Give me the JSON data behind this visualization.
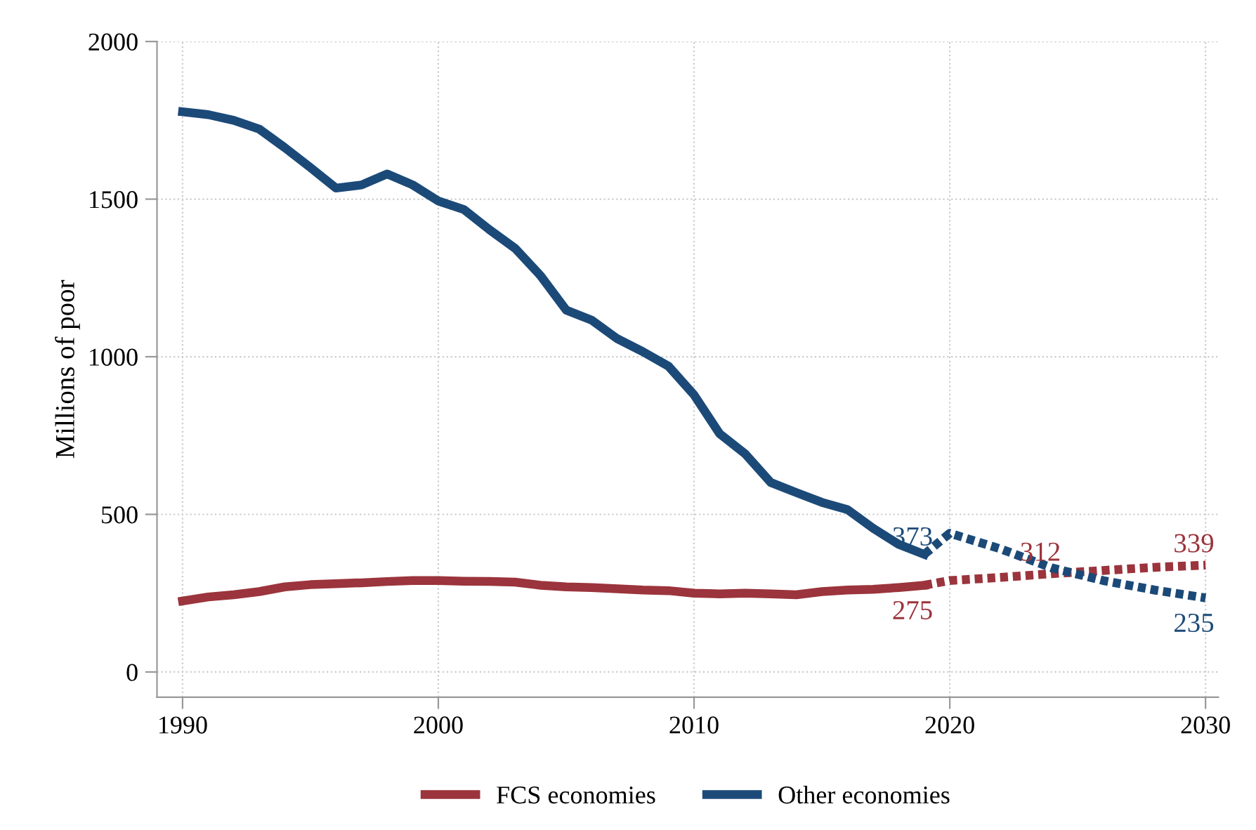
{
  "chart_data": {
    "type": "line",
    "ylabel": "Millions of poor",
    "xlim": [
      1989,
      2030.5
    ],
    "ylim": [
      -80,
      2000
    ],
    "xticks": [
      1990,
      2000,
      2010,
      2020,
      2030
    ],
    "yticks": [
      0,
      500,
      1000,
      1500,
      2000
    ],
    "grid": true,
    "legend": "bottom",
    "line_style": "solid",
    "marker": "none",
    "series": [
      {
        "name": "FCS economies",
        "color": "#9b343c",
        "x": [
          1990,
          1991,
          1992,
          1993,
          1994,
          1995,
          1996,
          1997,
          1998,
          1999,
          2000,
          2001,
          2002,
          2003,
          2004,
          2005,
          2006,
          2007,
          2008,
          2009,
          2010,
          2011,
          2012,
          2013,
          2014,
          2015,
          2016,
          2017,
          2018,
          2019
        ],
        "values": [
          225,
          238,
          245,
          255,
          270,
          277,
          280,
          283,
          287,
          290,
          290,
          288,
          287,
          285,
          275,
          270,
          268,
          264,
          260,
          258,
          250,
          248,
          250,
          248,
          245,
          255,
          260,
          262,
          268,
          275
        ]
      },
      {
        "name": "Other economies",
        "color": "#1c4a78",
        "x": [
          1990,
          1991,
          1992,
          1993,
          1994,
          1995,
          1996,
          1997,
          1998,
          1999,
          2000,
          2001,
          2002,
          2003,
          2004,
          2005,
          2006,
          2007,
          2008,
          2009,
          2010,
          2011,
          2012,
          2013,
          2014,
          2015,
          2016,
          2017,
          2018,
          2019
        ],
        "values": [
          1777,
          1768,
          1750,
          1722,
          1663,
          1600,
          1535,
          1545,
          1580,
          1545,
          1494,
          1467,
          1403,
          1344,
          1257,
          1148,
          1116,
          1057,
          1016,
          970,
          879,
          756,
          692,
          601,
          569,
          538,
          515,
          456,
          405,
          373
        ]
      },
      {
        "color": "#9b343c",
        "line_style": "dotted",
        "x": [
          2019,
          2020,
          2022,
          2024,
          2026,
          2028,
          2030
        ],
        "values": [
          275,
          290,
          300,
          312,
          322,
          332,
          339
        ]
      },
      {
        "color": "#1c4a78",
        "line_style": "dotted",
        "x": [
          2019,
          2020,
          2022,
          2024,
          2026,
          2028,
          2030
        ],
        "values": [
          373,
          440,
          390,
          330,
          290,
          260,
          235
        ]
      }
    ],
    "annotations": [
      {
        "text": "373",
        "x": 2019,
        "y": 373
      },
      {
        "text": "275",
        "x": 2019,
        "y": 275
      },
      {
        "text": "312",
        "x": 2024,
        "y": 312
      },
      {
        "text": "339",
        "x": 2030,
        "y": 339
      },
      {
        "text": "235",
        "x": 2030,
        "y": 235
      }
    ]
  }
}
